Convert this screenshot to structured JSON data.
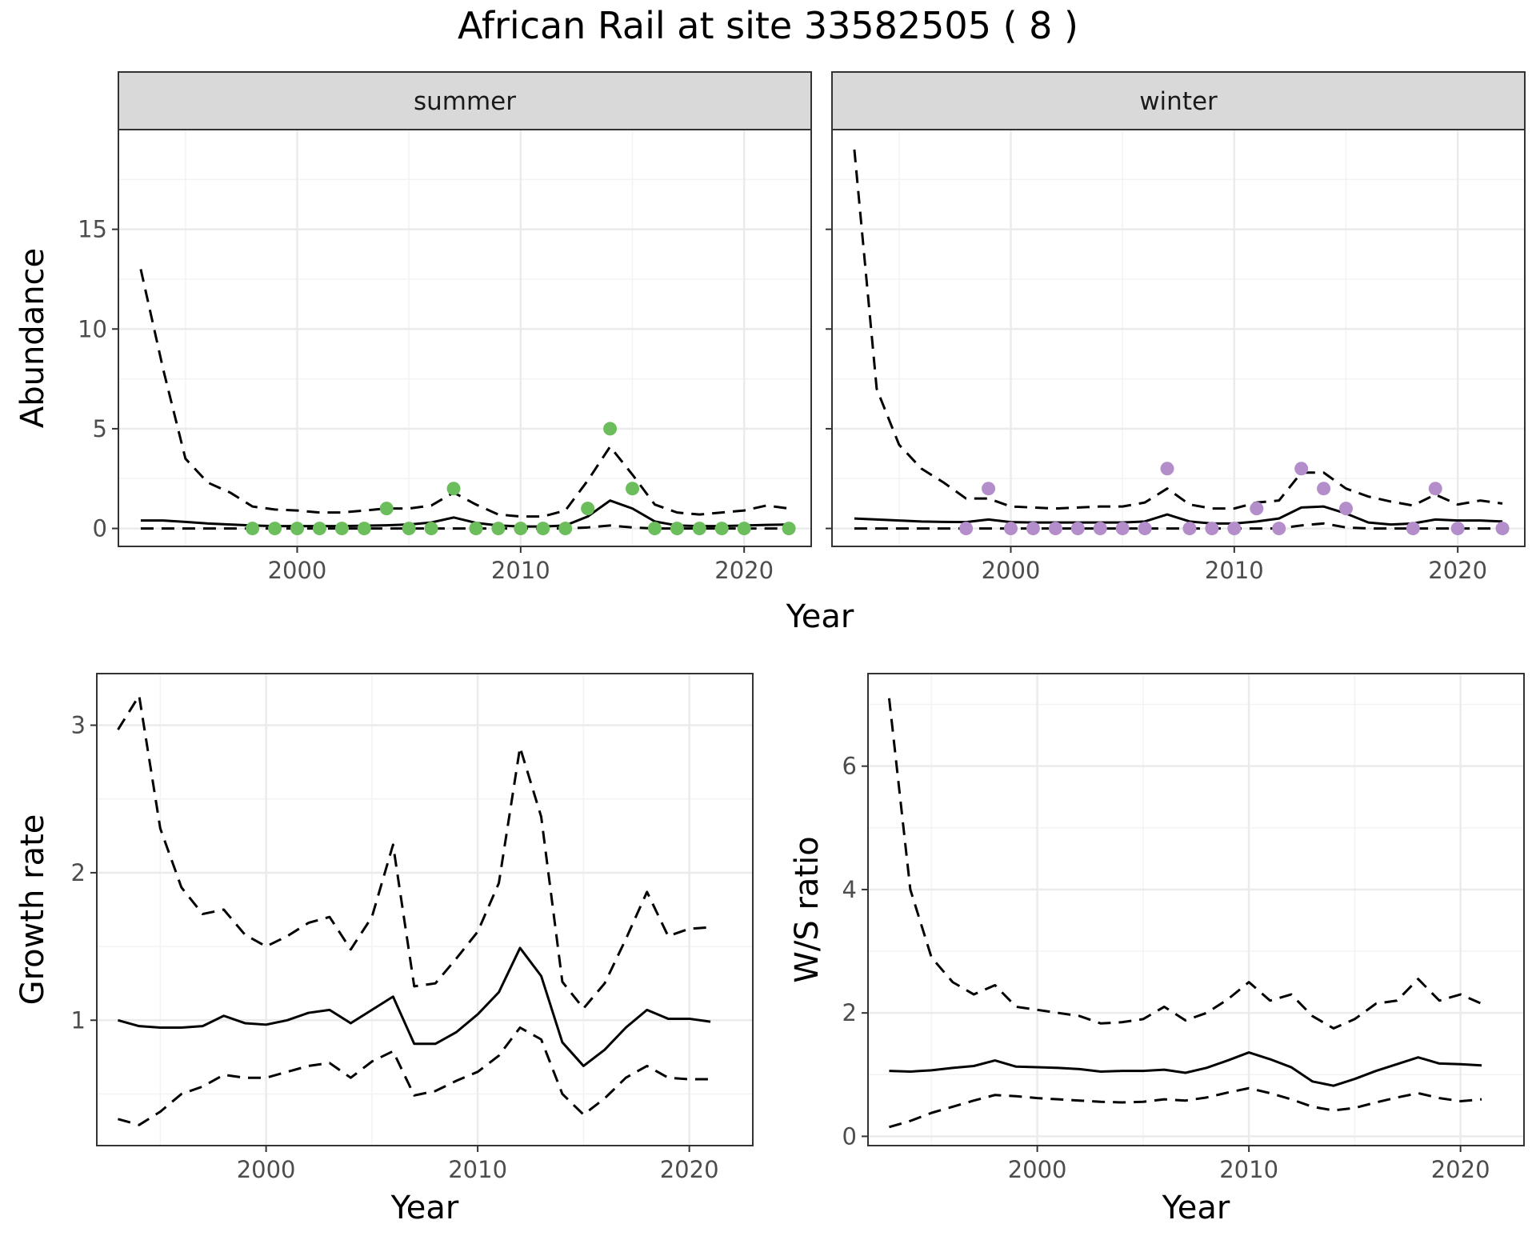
{
  "title": "African Rail at site 33582505 ( 8 )",
  "colors": {
    "summer_points": "#6cbd5b",
    "winter_points": "#b38ecb",
    "lines": "#000000",
    "strip_fill": "#d9d9d9",
    "grid_major": "#ebebeb",
    "grid_minor": "#f3f3f3"
  },
  "chart_data": [
    {
      "panel": "summer",
      "type": "line",
      "strip_label": "summer",
      "xlabel": "Year",
      "ylabel": "Abundance",
      "xlim": [
        1992,
        2023
      ],
      "ylim": [
        -0.9,
        20
      ],
      "x_ticks": [
        2000,
        2010,
        2020
      ],
      "y_ticks": [
        0,
        5,
        10,
        15
      ],
      "grid": true,
      "x": [
        1993,
        1994,
        1995,
        1996,
        1997,
        1998,
        1999,
        2000,
        2001,
        2002,
        2003,
        2004,
        2005,
        2006,
        2007,
        2008,
        2009,
        2010,
        2011,
        2012,
        2013,
        2014,
        2015,
        2016,
        2017,
        2018,
        2019,
        2020,
        2021,
        2022
      ],
      "series": [
        {
          "role": "estimate",
          "style": "solid",
          "values": [
            0.4,
            0.4,
            0.33,
            0.25,
            0.2,
            0.15,
            0.12,
            0.12,
            0.12,
            0.12,
            0.14,
            0.16,
            0.2,
            0.3,
            0.55,
            0.28,
            0.15,
            0.1,
            0.1,
            0.15,
            0.6,
            1.4,
            1.0,
            0.35,
            0.15,
            0.12,
            0.12,
            0.15,
            0.18,
            0.2
          ]
        },
        {
          "role": "upper",
          "style": "dashed",
          "values": [
            13,
            8,
            3.5,
            2.3,
            1.8,
            1.1,
            0.95,
            0.9,
            0.8,
            0.8,
            0.9,
            1.0,
            1.0,
            1.15,
            1.8,
            1.2,
            0.7,
            0.6,
            0.6,
            0.9,
            2.4,
            4.1,
            2.7,
            1.2,
            0.8,
            0.7,
            0.8,
            0.9,
            1.15,
            1.0
          ]
        },
        {
          "role": "lower",
          "style": "dashed",
          "values": [
            0,
            0,
            0,
            0,
            0,
            0,
            0,
            0,
            0,
            0,
            0,
            0,
            0,
            0,
            0,
            0,
            0,
            0,
            0,
            0,
            0.05,
            0.15,
            0.05,
            0,
            0,
            0,
            0,
            0,
            0,
            0
          ]
        }
      ],
      "points": {
        "x": [
          1998,
          1999,
          2000,
          2001,
          2002,
          2003,
          2004,
          2005,
          2006,
          2007,
          2008,
          2009,
          2010,
          2011,
          2012,
          2013,
          2014,
          2015,
          2016,
          2017,
          2018,
          2019,
          2020,
          2022
        ],
        "y": [
          0,
          0,
          0,
          0,
          0,
          0,
          1,
          0,
          0,
          2,
          0,
          0,
          0,
          0,
          0,
          1,
          5,
          2,
          0,
          0,
          0,
          0,
          0,
          0
        ]
      }
    },
    {
      "panel": "winter",
      "type": "line",
      "strip_label": "winter",
      "xlabel": "Year",
      "ylabel": "",
      "xlim": [
        1992,
        2023
      ],
      "ylim": [
        -0.9,
        20
      ],
      "x_ticks": [
        2000,
        2010,
        2020
      ],
      "y_ticks": [
        0,
        5,
        10,
        15
      ],
      "grid": true,
      "x": [
        1993,
        1994,
        1995,
        1996,
        1997,
        1998,
        1999,
        2000,
        2001,
        2002,
        2003,
        2004,
        2005,
        2006,
        2007,
        2008,
        2009,
        2010,
        2011,
        2012,
        2013,
        2014,
        2015,
        2016,
        2017,
        2018,
        2019,
        2020,
        2021,
        2022
      ],
      "series": [
        {
          "role": "estimate",
          "style": "solid",
          "values": [
            0.5,
            0.45,
            0.4,
            0.35,
            0.33,
            0.32,
            0.45,
            0.32,
            0.3,
            0.3,
            0.3,
            0.3,
            0.3,
            0.35,
            0.7,
            0.35,
            0.25,
            0.25,
            0.35,
            0.5,
            1.05,
            1.1,
            0.75,
            0.3,
            0.2,
            0.25,
            0.45,
            0.4,
            0.4,
            0.35
          ]
        },
        {
          "role": "upper",
          "style": "dashed",
          "values": [
            19,
            7,
            4.2,
            3,
            2.3,
            1.5,
            1.5,
            1.1,
            1.05,
            1.0,
            1.05,
            1.1,
            1.1,
            1.3,
            2.0,
            1.2,
            1.0,
            1.0,
            1.3,
            1.4,
            2.8,
            2.8,
            2.0,
            1.6,
            1.35,
            1.15,
            1.7,
            1.2,
            1.4,
            1.25
          ]
        },
        {
          "role": "lower",
          "style": "dashed",
          "values": [
            0,
            0,
            0,
            0,
            0,
            0,
            0,
            0,
            0,
            0,
            0,
            0,
            0,
            0,
            0,
            0,
            0,
            0,
            0,
            0,
            0.15,
            0.25,
            0.05,
            0,
            0,
            0,
            0,
            0,
            0,
            0
          ]
        }
      ],
      "points": {
        "x": [
          1998,
          1999,
          2000,
          2001,
          2002,
          2003,
          2004,
          2005,
          2006,
          2007,
          2008,
          2009,
          2010,
          2011,
          2012,
          2013,
          2014,
          2015,
          2018,
          2019,
          2020,
          2022
        ],
        "y": [
          0,
          2,
          0,
          0,
          0,
          0,
          0,
          0,
          0,
          3,
          0,
          0,
          0,
          1,
          0,
          3,
          2,
          1,
          0,
          2,
          0,
          0
        ]
      }
    },
    {
      "panel": "growth",
      "type": "line",
      "xlabel": "Year",
      "ylabel": "Growth rate",
      "xlim": [
        1992,
        2023
      ],
      "ylim": [
        0.15,
        3.35
      ],
      "x_ticks": [
        2000,
        2010,
        2020
      ],
      "y_ticks": [
        1,
        2,
        3
      ],
      "grid": true,
      "x": [
        1993,
        1994,
        1995,
        1996,
        1997,
        1998,
        1999,
        2000,
        2001,
        2002,
        2003,
        2004,
        2005,
        2006,
        2007,
        2008,
        2009,
        2010,
        2011,
        2012,
        2013,
        2014,
        2015,
        2016,
        2017,
        2018,
        2019,
        2020,
        2021
      ],
      "series": [
        {
          "role": "estimate",
          "style": "solid",
          "values": [
            1.0,
            0.96,
            0.95,
            0.95,
            0.96,
            1.03,
            0.98,
            0.97,
            1.0,
            1.05,
            1.07,
            0.98,
            1.07,
            1.16,
            0.84,
            0.84,
            0.92,
            1.04,
            1.19,
            1.49,
            1.3,
            0.85,
            0.69,
            0.8,
            0.95,
            1.07,
            1.01,
            1.01,
            0.99
          ]
        },
        {
          "role": "upper",
          "style": "dashed",
          "values": [
            2.97,
            3.2,
            2.3,
            1.9,
            1.72,
            1.75,
            1.58,
            1.5,
            1.57,
            1.66,
            1.7,
            1.48,
            1.7,
            2.19,
            1.23,
            1.25,
            1.42,
            1.6,
            1.93,
            2.85,
            2.38,
            1.26,
            1.08,
            1.25,
            1.55,
            1.87,
            1.57,
            1.62,
            1.63
          ]
        },
        {
          "role": "lower",
          "style": "dashed",
          "values": [
            0.33,
            0.29,
            0.38,
            0.5,
            0.55,
            0.63,
            0.61,
            0.61,
            0.65,
            0.69,
            0.71,
            0.61,
            0.72,
            0.79,
            0.49,
            0.52,
            0.59,
            0.65,
            0.76,
            0.95,
            0.87,
            0.5,
            0.36,
            0.47,
            0.61,
            0.69,
            0.61,
            0.6,
            0.6
          ]
        }
      ]
    },
    {
      "panel": "ratio",
      "type": "line",
      "xlabel": "Year",
      "ylabel": "W/S ratio",
      "xlim": [
        1992,
        2023
      ],
      "ylim": [
        -0.15,
        7.5
      ],
      "x_ticks": [
        2000,
        2010,
        2020
      ],
      "y_ticks": [
        0,
        2,
        4,
        6
      ],
      "grid": true,
      "x": [
        1993,
        1994,
        1995,
        1996,
        1997,
        1998,
        1999,
        2000,
        2001,
        2002,
        2003,
        2004,
        2005,
        2006,
        2007,
        2008,
        2009,
        2010,
        2011,
        2012,
        2013,
        2014,
        2015,
        2016,
        2017,
        2018,
        2019,
        2020,
        2021
      ],
      "series": [
        {
          "role": "estimate",
          "style": "solid",
          "values": [
            1.06,
            1.05,
            1.07,
            1.11,
            1.14,
            1.23,
            1.13,
            1.12,
            1.11,
            1.09,
            1.05,
            1.06,
            1.06,
            1.08,
            1.03,
            1.11,
            1.23,
            1.36,
            1.25,
            1.12,
            0.89,
            0.82,
            0.93,
            1.06,
            1.17,
            1.28,
            1.18,
            1.17,
            1.15
          ]
        },
        {
          "role": "upper",
          "style": "dashed",
          "values": [
            7.1,
            4.0,
            2.9,
            2.5,
            2.3,
            2.45,
            2.1,
            2.05,
            2.0,
            1.95,
            1.83,
            1.85,
            1.9,
            2.1,
            1.88,
            2.0,
            2.22,
            2.5,
            2.2,
            2.3,
            1.95,
            1.75,
            1.9,
            2.15,
            2.2,
            2.55,
            2.2,
            2.3,
            2.15
          ]
        },
        {
          "role": "lower",
          "style": "dashed",
          "values": [
            0.15,
            0.25,
            0.38,
            0.48,
            0.58,
            0.67,
            0.65,
            0.62,
            0.6,
            0.58,
            0.56,
            0.55,
            0.56,
            0.6,
            0.58,
            0.63,
            0.71,
            0.78,
            0.7,
            0.6,
            0.48,
            0.42,
            0.46,
            0.55,
            0.63,
            0.7,
            0.62,
            0.57,
            0.6
          ]
        }
      ]
    }
  ]
}
